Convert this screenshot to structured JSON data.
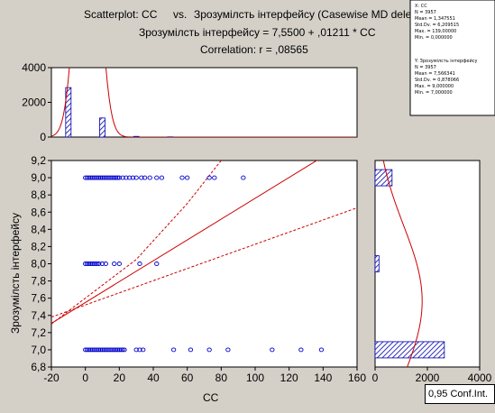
{
  "header": {
    "line1_prefix": "Scatterplot: CC",
    "line1_vs": "vs.",
    "line1_rest": "Зрозумілсть інтерфейсу (Casewise MD deletion)",
    "line2": "Зрозумілсть інтерфейсу = 7,5500 + ,01211 * CC",
    "line3": "Correlation: r = ,08565"
  },
  "stats_box": {
    "x_block": [
      "X: CC",
      "N = 3957",
      "Mean = 1,347551",
      "Std.Dv. = 6,209515",
      "Max. = 139,00000",
      "Min. = 0,000000"
    ],
    "y_block": [
      "Y: Зрозумілсть інтерфейсу",
      "N = 3957",
      "Mean = 7,566341",
      "Std.Dv. = 0,878066",
      "Max. = 9,000000",
      "Min. = 7,000000"
    ]
  },
  "conf_box_label": "0,95 Conf.Int.",
  "colors": {
    "background": "#d4d0c8",
    "plot_bg": "#ffffff",
    "points": "#0000cc",
    "regression": "#cc0000",
    "histogram_hatch": "#0000aa"
  },
  "chart_data": [
    {
      "type": "scatter",
      "name": "main",
      "xlabel": "CC",
      "ylabel": "Зрозумілсть інтерфейсу",
      "xlim": [
        -20,
        160
      ],
      "ylim": [
        6.8,
        9.2
      ],
      "x_ticks": [
        "-20",
        "0",
        "20",
        "40",
        "60",
        "80",
        "100",
        "120",
        "140",
        "160"
      ],
      "y_ticks": [
        "6,8",
        "7,0",
        "7,2",
        "7,4",
        "7,6",
        "7,8",
        "8,0",
        "8,2",
        "8,4",
        "8,6",
        "8,8",
        "9,0",
        "9,2"
      ],
      "points": [
        [
          0,
          9
        ],
        [
          1,
          9
        ],
        [
          2,
          9
        ],
        [
          3,
          9
        ],
        [
          4,
          9
        ],
        [
          5,
          9
        ],
        [
          6,
          9
        ],
        [
          7,
          9
        ],
        [
          8,
          9
        ],
        [
          9,
          9
        ],
        [
          10,
          9
        ],
        [
          11,
          9
        ],
        [
          12,
          9
        ],
        [
          13,
          9
        ],
        [
          14,
          9
        ],
        [
          15,
          9
        ],
        [
          16,
          9
        ],
        [
          17,
          9
        ],
        [
          18,
          9
        ],
        [
          19,
          9
        ],
        [
          20,
          9
        ],
        [
          22,
          9
        ],
        [
          24,
          9
        ],
        [
          26,
          9
        ],
        [
          28,
          9
        ],
        [
          30,
          9
        ],
        [
          33,
          9
        ],
        [
          35,
          9
        ],
        [
          38,
          9
        ],
        [
          42,
          9
        ],
        [
          45,
          9
        ],
        [
          57,
          9
        ],
        [
          60,
          9
        ],
        [
          73,
          9
        ],
        [
          76,
          9
        ],
        [
          93,
          9
        ],
        [
          0,
          8
        ],
        [
          1,
          8
        ],
        [
          2,
          8
        ],
        [
          3,
          8
        ],
        [
          4,
          8
        ],
        [
          5,
          8
        ],
        [
          6,
          8
        ],
        [
          7,
          8
        ],
        [
          8,
          8
        ],
        [
          10,
          8
        ],
        [
          12,
          8
        ],
        [
          17,
          8
        ],
        [
          20,
          8
        ],
        [
          32,
          8
        ],
        [
          42,
          8
        ],
        [
          0,
          7
        ],
        [
          1,
          7
        ],
        [
          2,
          7
        ],
        [
          3,
          7
        ],
        [
          4,
          7
        ],
        [
          5,
          7
        ],
        [
          6,
          7
        ],
        [
          7,
          7
        ],
        [
          8,
          7
        ],
        [
          9,
          7
        ],
        [
          10,
          7
        ],
        [
          11,
          7
        ],
        [
          12,
          7
        ],
        [
          13,
          7
        ],
        [
          14,
          7
        ],
        [
          15,
          7
        ],
        [
          16,
          7
        ],
        [
          17,
          7
        ],
        [
          18,
          7
        ],
        [
          19,
          7
        ],
        [
          20,
          7
        ],
        [
          21,
          7
        ],
        [
          22,
          7
        ],
        [
          23,
          7
        ],
        [
          30,
          7
        ],
        [
          32,
          7
        ],
        [
          34,
          7
        ],
        [
          52,
          7
        ],
        [
          62,
          7
        ],
        [
          73,
          7
        ],
        [
          84,
          7
        ],
        [
          110,
          7
        ],
        [
          127,
          7
        ],
        [
          139,
          7
        ]
      ],
      "regression": {
        "intercept": 7.55,
        "slope": 0.01211
      },
      "conf_lower": [
        [
          -20,
          7.38
        ],
        [
          160,
          8.65
        ]
      ],
      "conf_upper": [
        [
          -20,
          7.3
        ],
        [
          30,
          8.05
        ],
        [
          60,
          8.7
        ],
        [
          80,
          9.2
        ]
      ],
      "annotation": "0,95 Conf.Int."
    },
    {
      "type": "bar",
      "name": "top_histogram",
      "xlim": [
        -20,
        160
      ],
      "ylim": [
        0,
        4000
      ],
      "y_ticks": [
        "0",
        "2000",
        "4000"
      ],
      "bins": [
        [
          -10,
          2850
        ],
        [
          10,
          1100
        ],
        [
          30,
          40
        ],
        [
          50,
          15
        ]
      ]
    },
    {
      "type": "bar",
      "name": "right_histogram",
      "orientation": "horizontal",
      "xlim": [
        0,
        4000
      ],
      "x_ticks": [
        "0",
        "2000",
        "4000"
      ],
      "bins": [
        [
          9.0,
          650
        ],
        [
          8.0,
          150
        ],
        [
          7.0,
          2650
        ]
      ]
    }
  ]
}
